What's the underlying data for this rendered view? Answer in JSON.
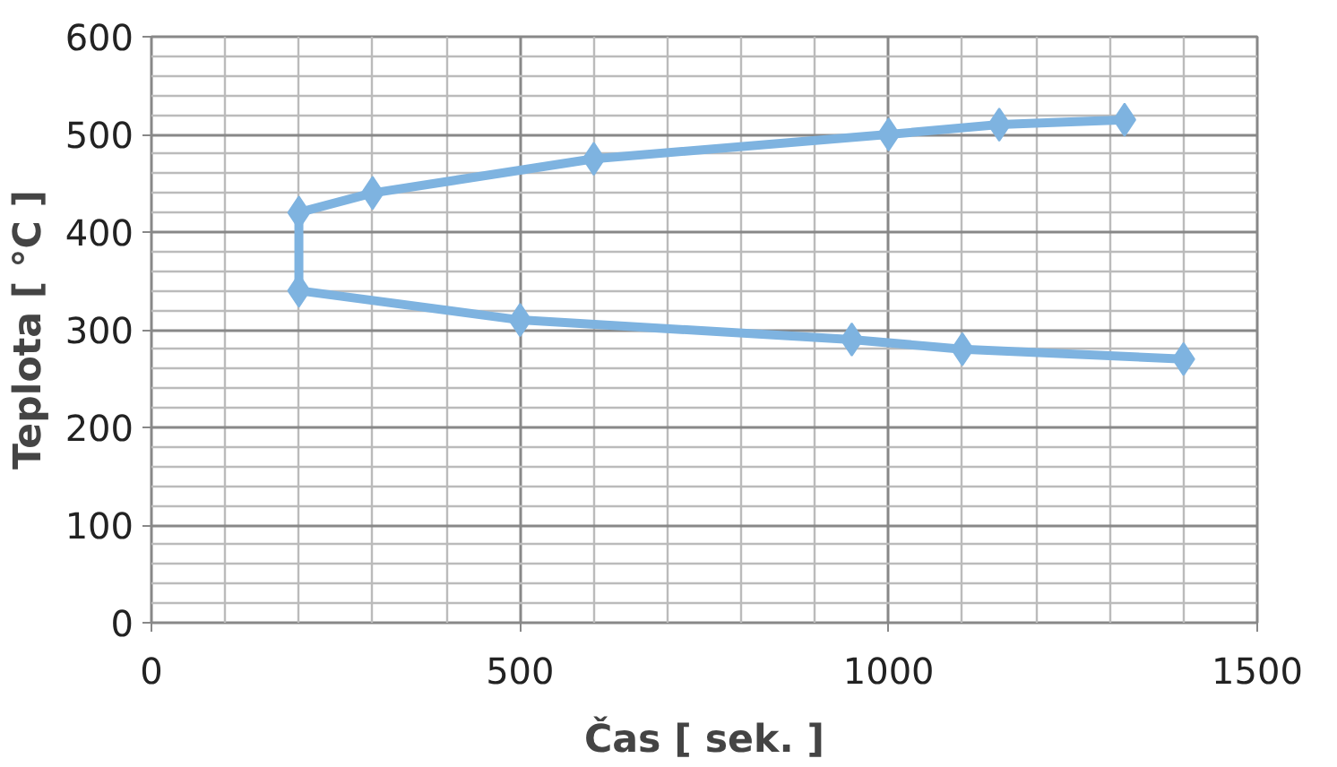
{
  "chart_data": {
    "type": "line",
    "xlabel": "Čas [ sek. ]",
    "ylabel": "Teplota [ °C ]",
    "xlim": [
      0,
      1500
    ],
    "xticks": [
      0,
      500,
      1000,
      1500
    ],
    "ylim": [
      0,
      600
    ],
    "yticks": [
      0,
      100,
      200,
      300,
      400,
      500,
      600
    ],
    "grid": true,
    "marker": "diamond",
    "line_style": "solid",
    "series": [
      {
        "color": "#7eb3e0",
        "x": [
          1320,
          1150,
          1000,
          600,
          300,
          200,
          200,
          500,
          950,
          1100,
          1400
        ],
        "values": [
          515,
          510,
          500,
          475,
          440,
          420,
          340,
          310,
          290,
          280,
          270
        ]
      }
    ]
  }
}
